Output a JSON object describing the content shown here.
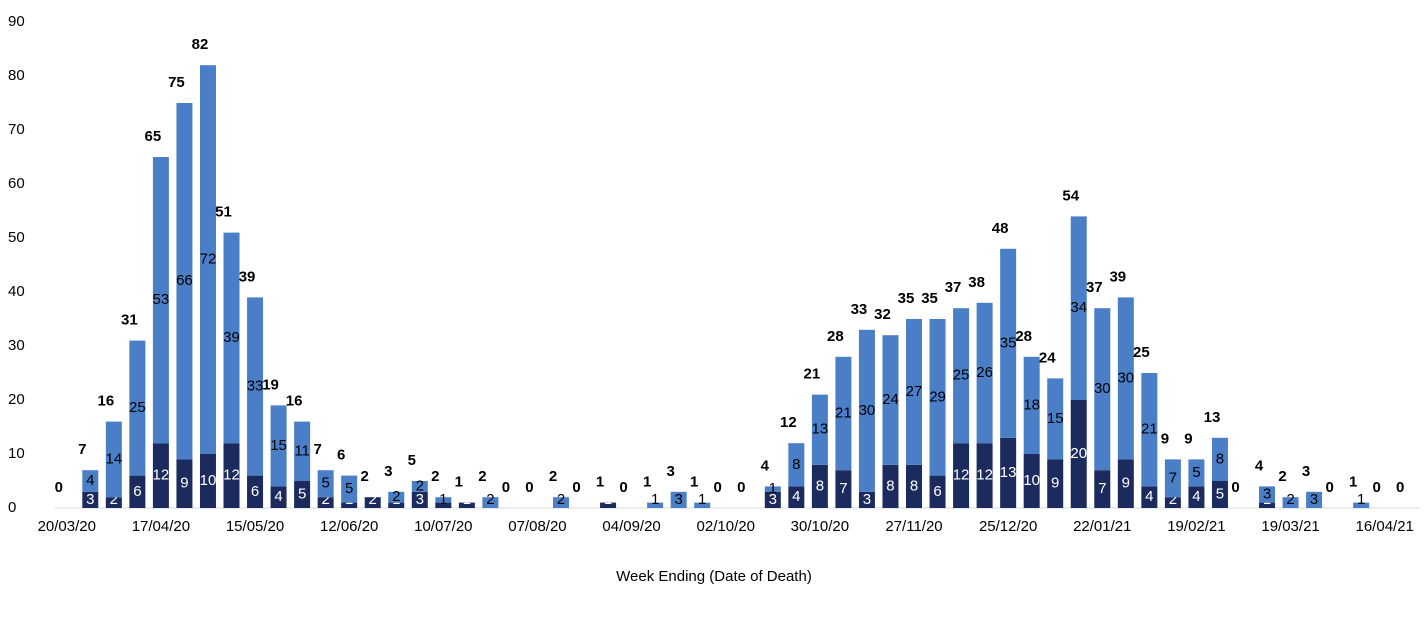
{
  "chart_data": {
    "type": "stacked_bar",
    "xlabel": "Week Ending (Date of Death)",
    "categories": [
      "20/03/20",
      null,
      null,
      null,
      "17/04/20",
      null,
      null,
      null,
      "15/05/20",
      null,
      null,
      null,
      "12/06/20",
      null,
      null,
      null,
      "10/07/20",
      null,
      null,
      null,
      "07/08/20",
      null,
      null,
      null,
      "04/09/20",
      null,
      null,
      null,
      "02/10/20",
      null,
      null,
      null,
      "30/10/20",
      null,
      null,
      null,
      "27/11/20",
      null,
      null,
      null,
      "25/12/20",
      null,
      null,
      null,
      "22/01/21",
      null,
      null,
      null,
      "19/02/21",
      null,
      null,
      null,
      "19/03/21",
      null,
      null,
      null,
      "16/04/21",
      null
    ],
    "series": [
      {
        "color": "#1c2b5e",
        "values": [
          0,
          3,
          2,
          6,
          12,
          9,
          10,
          12,
          6,
          4,
          5,
          2,
          1,
          2,
          1,
          3,
          1,
          1,
          0,
          0,
          0,
          0,
          0,
          1,
          0,
          0,
          0,
          0,
          0,
          0,
          3,
          4,
          8,
          7,
          3,
          8,
          8,
          6,
          12,
          12,
          13,
          10,
          9,
          20,
          7,
          9,
          4,
          2,
          4,
          5,
          0,
          1,
          0,
          0,
          0,
          0,
          0,
          0
        ]
      },
      {
        "color": "#4a7fc8",
        "values": [
          0,
          4,
          14,
          25,
          53,
          66,
          72,
          39,
          33,
          15,
          11,
          5,
          5,
          0,
          2,
          2,
          1,
          0,
          2,
          0,
          0,
          2,
          0,
          0,
          0,
          1,
          3,
          1,
          0,
          0,
          1,
          8,
          13,
          21,
          30,
          24,
          27,
          29,
          25,
          26,
          35,
          18,
          15,
          34,
          30,
          30,
          21,
          7,
          5,
          8,
          0,
          3,
          2,
          3,
          0,
          1,
          0,
          0
        ]
      }
    ],
    "totals": [
      0,
      7,
      16,
      31,
      65,
      75,
      82,
      51,
      39,
      19,
      16,
      7,
      6,
      2,
      3,
      5,
      2,
      1,
      2,
      0,
      0,
      2,
      0,
      1,
      0,
      1,
      3,
      1,
      0,
      0,
      4,
      12,
      21,
      28,
      33,
      32,
      35,
      35,
      37,
      38,
      48,
      28,
      24,
      54,
      37,
      39,
      25,
      9,
      9,
      13,
      0,
      4,
      2,
      3,
      0,
      1,
      0,
      0
    ],
    "ylim": [
      0,
      90
    ],
    "yticks": [
      0,
      10,
      20,
      30,
      40,
      50,
      60,
      70,
      80,
      90
    ]
  }
}
